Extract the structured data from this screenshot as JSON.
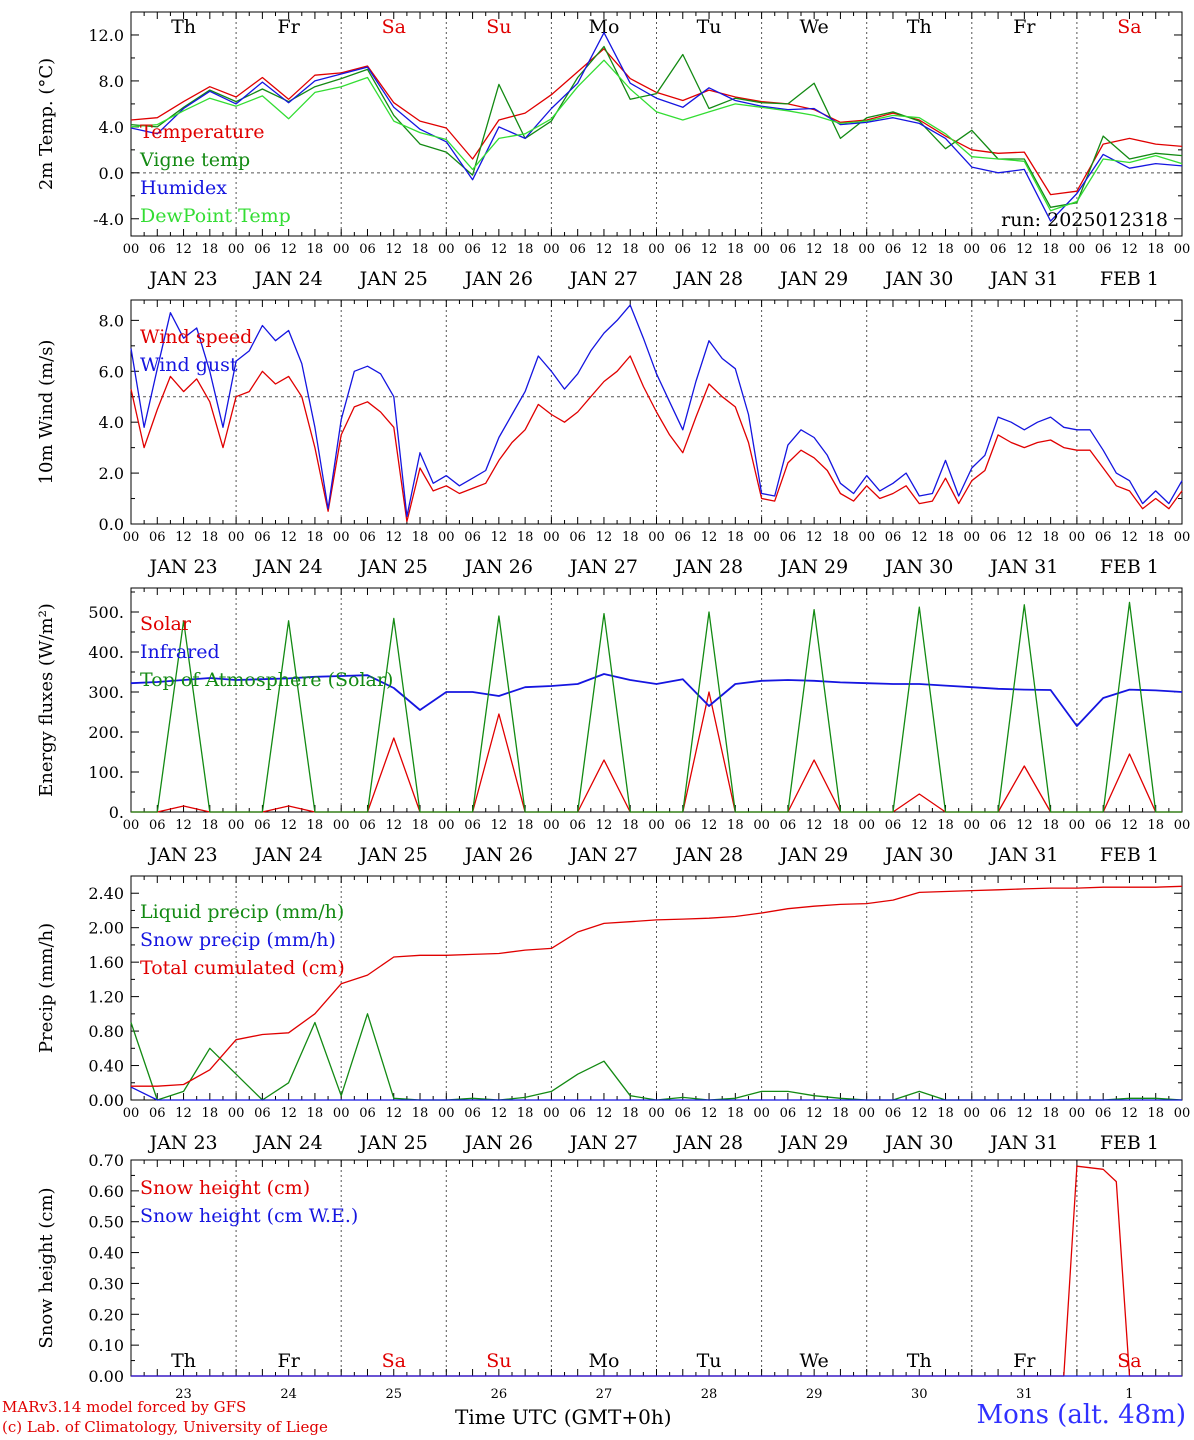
{
  "x_axis": {
    "hour_ticks": [
      "00",
      "06",
      "12",
      "18"
    ],
    "final_tick": "00",
    "date_labels": [
      "JAN 23",
      "JAN 24",
      "JAN 25",
      "JAN 26",
      "JAN 27",
      "JAN 28",
      "JAN 29",
      "JAN 30",
      "JAN 31",
      "FEB  1"
    ],
    "day_numbers": [
      "23",
      "24",
      "25",
      "26",
      "27",
      "28",
      "29",
      "30",
      "31",
      "1"
    ],
    "weekdays": [
      "Th",
      "Fr",
      "Sa",
      "Su",
      "Mo",
      "Tu",
      "We",
      "Th",
      "Fr",
      "Sa"
    ],
    "weekend_flags": [
      false,
      false,
      true,
      true,
      false,
      false,
      false,
      false,
      false,
      true
    ],
    "title": "Time UTC (GMT+0h)"
  },
  "colors": {
    "red": "#e00000",
    "green": "#138a13",
    "blue": "#1515e0",
    "lightgreen": "#33dd33",
    "weekend": "#e00000"
  },
  "footer": {
    "credit_line1": "MARv3.14 model forced by GFS",
    "credit_line2": "(c) Lab. of Climatology, University of Liege",
    "station": "Mons (alt. 48m)"
  },
  "chart_data": [
    {
      "type": "line",
      "ylabel": "2m Temp. (°C)",
      "ylim": [
        -5.5,
        14
      ],
      "yticks": [
        "-4.0",
        "0.0",
        "4.0",
        "8.0",
        "12.0"
      ],
      "ytick_values": [
        -4,
        0,
        4,
        8,
        12
      ],
      "ref_line": 0,
      "annotation": "run: 2025012318",
      "x_hours": [
        0,
        6,
        12,
        18,
        24,
        30,
        36,
        42,
        48,
        54,
        60,
        66,
        72,
        78,
        84,
        90,
        96,
        102,
        108,
        114,
        120,
        126,
        132,
        138,
        144,
        150,
        156,
        162,
        168,
        174,
        180,
        186,
        192,
        198,
        204,
        210,
        216,
        222,
        228,
        234,
        240
      ],
      "series": [
        {
          "name": "Temperature",
          "color": "red",
          "values": [
            4.6,
            4.8,
            6.2,
            7.5,
            6.6,
            8.3,
            6.4,
            8.5,
            8.7,
            9.3,
            6.1,
            4.5,
            3.9,
            1.2,
            4.6,
            5.2,
            6.8,
            8.8,
            10.8,
            8.2,
            7.0,
            6.3,
            7.2,
            6.6,
            6.2,
            6.0,
            5.5,
            4.4,
            4.6,
            5.2,
            4.6,
            3.2,
            2.0,
            1.7,
            1.8,
            -1.9,
            -1.6,
            2.5,
            3.0,
            2.5,
            2.3
          ]
        },
        {
          "name": "Vigne temp",
          "color": "green",
          "values": [
            4.2,
            4.0,
            5.7,
            7.2,
            6.2,
            7.3,
            6.2,
            7.5,
            8.2,
            9.0,
            5.0,
            2.5,
            1.8,
            -0.2,
            7.7,
            3.0,
            4.5,
            8.3,
            11.0,
            6.4,
            6.9,
            10.3,
            5.6,
            6.5,
            6.1,
            6.0,
            7.8,
            3.0,
            4.8,
            5.3,
            4.5,
            2.1,
            3.7,
            1.2,
            1.2,
            -3.0,
            -2.6,
            3.2,
            1.2,
            1.7,
            1.5
          ]
        },
        {
          "name": "Humidex",
          "color": "blue",
          "values": [
            3.9,
            3.4,
            5.6,
            7.1,
            6.0,
            7.9,
            6.1,
            8.0,
            8.6,
            9.2,
            5.7,
            3.8,
            2.7,
            -0.6,
            4.0,
            3.0,
            5.6,
            7.8,
            12.2,
            7.8,
            6.5,
            5.7,
            7.4,
            6.3,
            5.8,
            5.5,
            5.6,
            4.2,
            4.4,
            4.8,
            4.3,
            3.0,
            0.5,
            0.0,
            0.3,
            -4.2,
            -1.8,
            1.6,
            0.4,
            0.8,
            0.6
          ]
        },
        {
          "name": "DewPoint Temp",
          "color": "lightgreen",
          "values": [
            4.0,
            4.2,
            5.4,
            6.5,
            5.8,
            6.7,
            4.7,
            7.0,
            7.5,
            8.3,
            4.5,
            3.5,
            2.9,
            0.3,
            3.0,
            3.4,
            4.7,
            7.5,
            9.8,
            7.3,
            5.3,
            4.6,
            5.3,
            6.0,
            5.7,
            5.4,
            5.0,
            4.3,
            4.5,
            5.0,
            4.8,
            3.4,
            1.4,
            1.2,
            1.0,
            -3.3,
            -2.5,
            1.2,
            0.9,
            1.5,
            0.8
          ]
        }
      ]
    },
    {
      "type": "line",
      "ylabel": "10m Wind (m/s)",
      "ylim": [
        0,
        8.8
      ],
      "yticks": [
        "0.0",
        "2.0",
        "4.0",
        "6.0",
        "8.0"
      ],
      "ytick_values": [
        0,
        2,
        4,
        6,
        8
      ],
      "ref_line": 5,
      "annotation": "",
      "x_hours": [
        0,
        3,
        6,
        9,
        12,
        15,
        18,
        21,
        24,
        27,
        30,
        33,
        36,
        39,
        42,
        45,
        48,
        51,
        54,
        57,
        60,
        63,
        66,
        69,
        72,
        75,
        78,
        81,
        84,
        87,
        90,
        93,
        96,
        99,
        102,
        105,
        108,
        111,
        114,
        117,
        120,
        123,
        126,
        129,
        132,
        135,
        138,
        141,
        144,
        147,
        150,
        153,
        156,
        159,
        162,
        165,
        168,
        171,
        174,
        177,
        180,
        183,
        186,
        189,
        192,
        195,
        198,
        201,
        204,
        207,
        210,
        213,
        216,
        219,
        222,
        225,
        228,
        231,
        234,
        237,
        240
      ],
      "series": [
        {
          "name": "Wind speed",
          "color": "red",
          "values": [
            5.3,
            3.0,
            4.5,
            5.8,
            5.2,
            5.7,
            4.8,
            3.0,
            5.0,
            5.2,
            6.0,
            5.5,
            5.8,
            5.0,
            3.0,
            0.5,
            3.5,
            4.6,
            4.8,
            4.4,
            3.8,
            0.1,
            2.2,
            1.3,
            1.5,
            1.2,
            1.4,
            1.6,
            2.5,
            3.2,
            3.7,
            4.7,
            4.3,
            4.0,
            4.4,
            5.0,
            5.6,
            6.0,
            6.6,
            5.4,
            4.4,
            3.5,
            2.8,
            4.2,
            5.5,
            5.0,
            4.6,
            3.2,
            1.0,
            0.9,
            2.4,
            2.9,
            2.6,
            2.1,
            1.2,
            0.9,
            1.5,
            1.0,
            1.2,
            1.5,
            0.8,
            0.9,
            1.8,
            0.8,
            1.7,
            2.1,
            3.5,
            3.2,
            3.0,
            3.2,
            3.3,
            3.0,
            2.9,
            2.9,
            2.2,
            1.5,
            1.3,
            0.6,
            1.0,
            0.6,
            1.3
          ]
        },
        {
          "name": "Wind gust",
          "color": "blue",
          "values": [
            6.9,
            3.8,
            6.1,
            8.3,
            7.3,
            7.7,
            6.0,
            3.8,
            6.4,
            6.8,
            7.8,
            7.2,
            7.6,
            6.3,
            3.8,
            0.6,
            4.1,
            6.0,
            6.2,
            5.9,
            5.0,
            0.3,
            2.8,
            1.6,
            1.9,
            1.5,
            1.8,
            2.1,
            3.4,
            4.3,
            5.2,
            6.6,
            6.0,
            5.3,
            5.9,
            6.8,
            7.5,
            8.0,
            8.6,
            7.3,
            5.9,
            4.8,
            3.7,
            5.6,
            7.2,
            6.5,
            6.1,
            4.3,
            1.2,
            1.1,
            3.1,
            3.7,
            3.4,
            2.7,
            1.6,
            1.2,
            1.9,
            1.3,
            1.6,
            2.0,
            1.1,
            1.2,
            2.5,
            1.1,
            2.2,
            2.7,
            4.2,
            4.0,
            3.7,
            4.0,
            4.2,
            3.8,
            3.7,
            3.7,
            2.9,
            2.0,
            1.7,
            0.8,
            1.3,
            0.8,
            1.7
          ]
        }
      ]
    },
    {
      "type": "line",
      "ylabel": "Energy fluxes (W/m²)",
      "ylim": [
        0,
        560
      ],
      "yticks": [
        "0.",
        "100.",
        "200.",
        "300.",
        "400.",
        "500."
      ],
      "ytick_values": [
        0,
        100,
        200,
        300,
        400,
        500
      ],
      "ref_line": null,
      "annotation": "",
      "x_hours": [
        0,
        6,
        12,
        18,
        24,
        30,
        36,
        42,
        48,
        54,
        60,
        66,
        72,
        78,
        84,
        90,
        96,
        102,
        108,
        114,
        120,
        126,
        132,
        138,
        144,
        150,
        156,
        162,
        168,
        174,
        180,
        186,
        192,
        198,
        204,
        210,
        216,
        222,
        228,
        234,
        240
      ],
      "series": [
        {
          "name": "Solar",
          "color": "red",
          "values": [
            0,
            0,
            15,
            0,
            0,
            0,
            15,
            0,
            0,
            0,
            185,
            0,
            0,
            0,
            245,
            0,
            0,
            0,
            130,
            0,
            0,
            0,
            300,
            0,
            0,
            0,
            130,
            0,
            0,
            0,
            45,
            0,
            0,
            0,
            115,
            0,
            0,
            0,
            145,
            0,
            0
          ]
        },
        {
          "name": "Infrared",
          "color": "blue",
          "values": [
            322,
            325,
            330,
            335,
            330,
            332,
            334,
            338,
            340,
            342,
            310,
            255,
            300,
            300,
            290,
            312,
            315,
            320,
            345,
            330,
            320,
            332,
            265,
            320,
            328,
            330,
            328,
            324,
            322,
            320,
            320,
            316,
            312,
            308,
            306,
            305,
            215,
            285,
            306,
            304,
            300
          ]
        },
        {
          "name": "Top of Atmosphere (Solar)",
          "color": "green",
          "values": [
            0,
            0,
            478,
            0,
            0,
            0,
            478,
            0,
            0,
            0,
            484,
            0,
            0,
            0,
            490,
            0,
            0,
            0,
            496,
            0,
            0,
            0,
            500,
            0,
            0,
            0,
            506,
            0,
            0,
            0,
            512,
            0,
            0,
            0,
            518,
            0,
            0,
            0,
            524,
            0,
            0
          ]
        }
      ]
    },
    {
      "type": "line",
      "ylabel": "Precip (mm/h)",
      "ylim": [
        0,
        2.6
      ],
      "yticks": [
        "0.00",
        "0.40",
        "0.80",
        "1.20",
        "1.60",
        "2.00",
        "2.40"
      ],
      "ytick_values": [
        0,
        0.4,
        0.8,
        1.2,
        1.6,
        2.0,
        2.4
      ],
      "ref_line": null,
      "annotation": "",
      "x_hours": [
        0,
        6,
        12,
        18,
        24,
        30,
        36,
        42,
        48,
        54,
        60,
        66,
        72,
        78,
        84,
        90,
        96,
        102,
        108,
        114,
        120,
        126,
        132,
        138,
        144,
        150,
        156,
        162,
        168,
        174,
        180,
        186,
        192,
        198,
        204,
        210,
        216,
        222,
        228,
        234,
        240
      ],
      "series": [
        {
          "name": "Liquid precip (mm/h)",
          "color": "green",
          "values": [
            0.9,
            0.0,
            0.1,
            0.6,
            0.3,
            0.0,
            0.2,
            0.9,
            0.05,
            1.0,
            0.02,
            0.0,
            0.0,
            0.02,
            0.0,
            0.03,
            0.1,
            0.3,
            0.45,
            0.05,
            0.0,
            0.03,
            0.0,
            0.02,
            0.1,
            0.1,
            0.05,
            0.02,
            0.0,
            0.0,
            0.1,
            0.0,
            0.0,
            0.0,
            0.0,
            0.0,
            0.0,
            0.0,
            0.02,
            0.02,
            0.0
          ]
        },
        {
          "name": "Snow precip (mm/h)",
          "color": "blue",
          "values": [
            0.15,
            0.0,
            0.0,
            0.0,
            0.0,
            0.0,
            0.0,
            0.0,
            0.0,
            0.0,
            0.0,
            0.0,
            0.0,
            0.0,
            0.0,
            0.0,
            0.0,
            0.0,
            0.0,
            0.0,
            0.0,
            0.0,
            0.0,
            0.0,
            0.0,
            0.0,
            0.0,
            0.0,
            0.0,
            0.0,
            0.0,
            0.0,
            0.0,
            0.0,
            0.0,
            0.0,
            0.0,
            0.0,
            0.0,
            0.0,
            0.0
          ]
        },
        {
          "name": "Total cumulated (cm)",
          "color": "red",
          "values": [
            0.16,
            0.16,
            0.18,
            0.35,
            0.7,
            0.76,
            0.78,
            1.0,
            1.35,
            1.45,
            1.66,
            1.68,
            1.68,
            1.69,
            1.7,
            1.74,
            1.76,
            1.95,
            2.05,
            2.07,
            2.09,
            2.1,
            2.11,
            2.13,
            2.17,
            2.22,
            2.25,
            2.27,
            2.28,
            2.32,
            2.41,
            2.42,
            2.43,
            2.44,
            2.45,
            2.46,
            2.46,
            2.47,
            2.47,
            2.47,
            2.48
          ]
        }
      ]
    },
    {
      "type": "line",
      "ylabel": "Snow height (cm)",
      "ylim": [
        0,
        0.7
      ],
      "yticks": [
        "0.00",
        "0.10",
        "0.20",
        "0.30",
        "0.40",
        "0.50",
        "0.60",
        "0.70"
      ],
      "ytick_values": [
        0,
        0.1,
        0.2,
        0.3,
        0.4,
        0.5,
        0.6,
        0.7
      ],
      "ref_line": null,
      "annotation": "",
      "x_hours": [
        0,
        210,
        213,
        216,
        222,
        225,
        228,
        240
      ],
      "series": [
        {
          "name": "Snow height (cm)",
          "color": "red",
          "values": [
            0,
            0,
            0,
            0.68,
            0.67,
            0.63,
            0,
            0
          ]
        },
        {
          "name": "Snow height (cm W.E.)",
          "color": "blue",
          "values": [
            0,
            0,
            0,
            0,
            0,
            0,
            0,
            0
          ]
        }
      ]
    }
  ]
}
